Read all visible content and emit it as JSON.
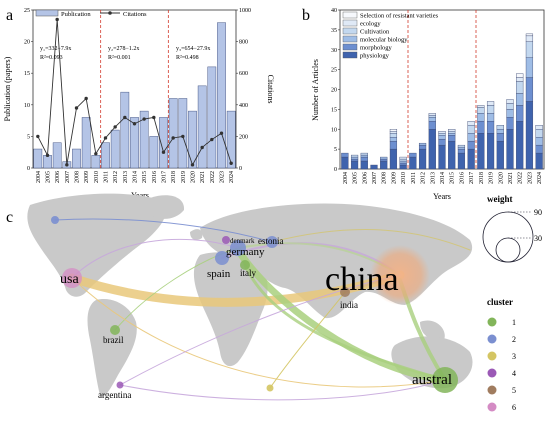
{
  "panels": [
    {
      "letter": "a"
    },
    {
      "letter": "b"
    },
    {
      "letter": "c"
    }
  ],
  "chart_data": [
    {
      "type": "bar",
      "panel": "a",
      "categories": [
        "2004",
        "2005",
        "2006",
        "2007",
        "2008",
        "2009",
        "2010",
        "2011",
        "2012",
        "2013",
        "2014",
        "2015",
        "2016",
        "2017",
        "2018",
        "2019",
        "2020",
        "2021",
        "2022",
        "2023",
        "2024"
      ],
      "xlabel": "Years",
      "ylabel": "Publication (papers)",
      "ylabel_right": "Citations",
      "ylim": [
        0,
        25
      ],
      "ylim_right": [
        0,
        1000
      ],
      "yticks": [
        0,
        5,
        10,
        15,
        20,
        25
      ],
      "yticks_right": [
        0,
        200,
        400,
        600,
        800,
        1000
      ],
      "legend_position": "top-left",
      "series": [
        {
          "name": "Publication",
          "kind": "bar",
          "color": "#b4c4e6",
          "values": [
            3,
            2,
            4,
            1,
            3,
            8,
            2,
            4,
            6,
            12,
            8,
            9,
            5,
            8,
            11,
            11,
            9,
            13,
            16,
            23,
            9
          ]
        },
        {
          "name": "Citations",
          "kind": "line",
          "color": "#333333",
          "values": [
            200,
            80,
            940,
            20,
            380,
            440,
            90,
            190,
            260,
            320,
            280,
            310,
            320,
            100,
            190,
            200,
            20,
            130,
            180,
            220,
            30
          ]
        }
      ],
      "separators_after_index": [
        6,
        13
      ],
      "annotations": [
        {
          "lines": [
            "y₁=332−7.9x",
            "R²=0.093"
          ]
        },
        {
          "lines": [
            "y₂=278−1.2x",
            "R²=0.001"
          ]
        },
        {
          "lines": [
            "y₃=654−27.9x",
            "R²=0.498"
          ]
        }
      ]
    },
    {
      "type": "bar",
      "stacked": true,
      "panel": "b",
      "categories": [
        "2004",
        "2005",
        "2006",
        "2007",
        "2008",
        "2009",
        "2010",
        "2011",
        "2012",
        "2013",
        "2014",
        "2015",
        "2016",
        "2017",
        "2018",
        "2019",
        "2020",
        "2021",
        "2022",
        "2023",
        "2024"
      ],
      "xlabel": "Years",
      "ylabel": "Number of Articles",
      "ylim": [
        0,
        40
      ],
      "yticks": [
        0,
        5,
        10,
        15,
        20,
        25,
        30,
        35,
        40
      ],
      "legend_position": "top-left",
      "separators_after_index": [
        6,
        13
      ],
      "series": [
        {
          "name": "physiology",
          "color": "#3f63ad",
          "values": [
            3,
            2,
            2,
            1,
            2,
            5,
            1,
            3,
            5,
            10,
            6,
            7,
            4,
            5,
            9,
            9,
            7,
            10,
            12,
            17,
            4
          ]
        },
        {
          "name": "morphology",
          "color": "#6d8fd0",
          "values": [
            1,
            0.5,
            1,
            0,
            0.5,
            2,
            0.5,
            1,
            1,
            2,
            1.5,
            1.5,
            1,
            2,
            3,
            3,
            2,
            3,
            4,
            6,
            2
          ]
        },
        {
          "name": "molecular biology",
          "color": "#9fbde6",
          "values": [
            0,
            0.5,
            0.5,
            0,
            0.5,
            1,
            0.5,
            0,
            0.5,
            1,
            1,
            0.5,
            0.5,
            2,
            2,
            2,
            1,
            2,
            3,
            5,
            2
          ]
        },
        {
          "name": "Cultivation",
          "color": "#c3d8ef",
          "values": [
            0,
            0.5,
            0.5,
            0,
            0,
            1,
            0.5,
            0,
            0,
            0.5,
            0.5,
            0.5,
            0.5,
            2,
            1.5,
            2,
            1,
            1.5,
            3,
            4,
            2
          ]
        },
        {
          "name": "ecology",
          "color": "#dfe9f6",
          "values": [
            0,
            0,
            0,
            0,
            0,
            0.5,
            0.5,
            0,
            0,
            0.5,
            0.5,
            0.5,
            0,
            1,
            0.5,
            1,
            0,
            1,
            1,
            1.5,
            1
          ]
        },
        {
          "name": "Selection of resistant varieties",
          "color": "#f6f8fc",
          "values": [
            0,
            0,
            0,
            0,
            0,
            0.5,
            0,
            0,
            0,
            0,
            0,
            0,
            0,
            0,
            0,
            0,
            0,
            0,
            1,
            0.5,
            0
          ]
        }
      ]
    },
    {
      "type": "map",
      "panel": "c",
      "legend_weight_title": "weight",
      "legend_weight_values": [
        90,
        30
      ],
      "legend_cluster_title": "cluster",
      "clusters": [
        {
          "id": "1",
          "color": "#82b55a"
        },
        {
          "id": "2",
          "color": "#7b8fd0"
        },
        {
          "id": "3",
          "color": "#d4c563"
        },
        {
          "id": "4",
          "color": "#9b59b6"
        },
        {
          "id": "5",
          "color": "#a07c5f"
        },
        {
          "id": "6",
          "color": "#d48bc4"
        }
      ],
      "nodes": [
        {
          "label": "china",
          "cluster": "5",
          "weight": 90
        },
        {
          "label": "usa",
          "cluster": "6",
          "weight": 20
        },
        {
          "label": "austral",
          "cluster": "1",
          "weight": 25
        },
        {
          "label": "germany",
          "cluster": "2",
          "weight": 14
        },
        {
          "label": "spain",
          "cluster": "2",
          "weight": 10
        },
        {
          "label": "italy",
          "cluster": "1",
          "weight": 8
        },
        {
          "label": "estonia",
          "cluster": "2",
          "weight": 8
        },
        {
          "label": "denmark",
          "cluster": "4",
          "weight": 5
        },
        {
          "label": "india",
          "cluster": "5",
          "weight": 7
        },
        {
          "label": "brazil",
          "cluster": "1",
          "weight": 6
        },
        {
          "label": "argentina",
          "cluster": "4",
          "weight": 4
        },
        {
          "label": "",
          "cluster": "2",
          "weight": 4
        },
        {
          "label": "",
          "cluster": "3",
          "weight": 4
        }
      ],
      "links": [
        {
          "source": "usa",
          "target": "china",
          "strength": 8,
          "color": "#e9c87a"
        },
        {
          "source": "austral",
          "target": "germany",
          "strength": 6,
          "color": "#a9d07e"
        },
        {
          "source": "austral",
          "target": "china",
          "strength": 4,
          "color": "#a9d07e"
        },
        {
          "source": "austral",
          "target": "italy",
          "strength": 3,
          "color": "#a9d07e"
        },
        {
          "source": "spain",
          "target": "china",
          "strength": 2,
          "color": "#c7a7db"
        },
        {
          "source": "germany",
          "target": "china",
          "strength": 2,
          "color": "#b9d29a"
        },
        {
          "source": "india",
          "target": "china",
          "strength": 2,
          "color": "#d9b98f"
        },
        {
          "source": "brazil",
          "target": "germany",
          "strength": 1,
          "color": "#a9d07e"
        },
        {
          "source": "argentina",
          "target": "austral",
          "strength": 1,
          "color": "#c7a7db"
        },
        {
          "source": "usa",
          "target": "austral",
          "strength": 1,
          "color": "#e9c87a"
        },
        {
          "source": "usa",
          "target": "germany",
          "strength": 1,
          "color": "#c7a7db"
        },
        {
          "source": "argentina",
          "target": "china",
          "strength": 1,
          "color": "#c7a7db"
        }
      ]
    }
  ]
}
